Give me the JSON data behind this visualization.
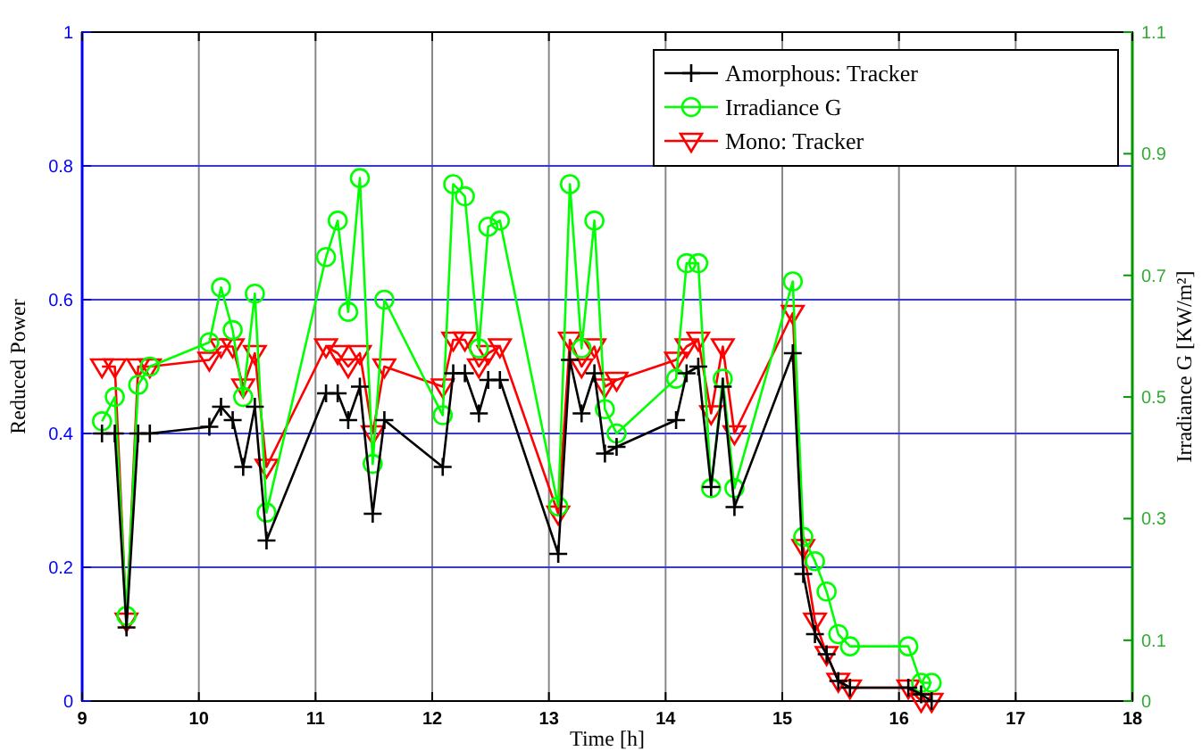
{
  "chart_data": {
    "type": "line",
    "xlabel": "Time [h]",
    "ylabel": "Reduced Power",
    "y2label": "Irradiance G [KW/m²]",
    "x": [
      9.17,
      9.28,
      9.38,
      9.48,
      9.58,
      10.09,
      10.19,
      10.29,
      10.38,
      10.48,
      10.58,
      11.09,
      11.19,
      11.28,
      11.38,
      11.49,
      11.59,
      12.09,
      12.18,
      12.28,
      12.4,
      12.48,
      12.58,
      13.08,
      13.18,
      13.28,
      13.39,
      13.48,
      13.58,
      14.09,
      14.18,
      14.28,
      14.39,
      14.49,
      14.59,
      15.09,
      15.18,
      15.28,
      15.38,
      15.48,
      15.58,
      16.08,
      16.19,
      16.28
    ],
    "series": [
      {
        "name": "Amorphous: Tracker",
        "color": "#000000",
        "marker": "cross",
        "values": [
          0.4,
          0.4,
          0.11,
          0.4,
          0.4,
          0.41,
          0.44,
          0.42,
          0.35,
          0.44,
          0.24,
          0.46,
          0.46,
          0.42,
          0.47,
          0.28,
          0.42,
          0.35,
          0.49,
          0.49,
          0.43,
          0.48,
          0.48,
          0.22,
          0.51,
          0.43,
          0.49,
          0.37,
          0.38,
          0.42,
          0.49,
          0.5,
          0.32,
          0.47,
          0.29,
          0.52,
          0.19,
          0.1,
          0.07,
          0.03,
          0.02,
          0.02,
          0.01,
          0
        ]
      },
      {
        "name": "Irradiance G",
        "color": "#00ff00",
        "marker": "circle",
        "axis": "y2",
        "values": [
          0.46,
          0.5,
          0.14,
          0.52,
          0.55,
          0.59,
          0.68,
          0.61,
          0.5,
          0.67,
          0.31,
          0.73,
          0.79,
          0.64,
          0.86,
          0.39,
          0.66,
          0.47,
          0.85,
          0.83,
          0.58,
          0.78,
          0.79,
          0.32,
          0.85,
          0.58,
          0.79,
          0.48,
          0.44,
          0.53,
          0.72,
          0.72,
          0.35,
          0.53,
          0.35,
          0.69,
          0.27,
          0.23,
          0.18,
          0.11,
          0.09,
          0.09,
          0.03,
          0.03
        ]
      },
      {
        "name": "Mono: Tracker",
        "color": "#ff0000",
        "marker": "triangle",
        "values": [
          0.5,
          0.5,
          0.12,
          0.5,
          0.5,
          0.51,
          0.53,
          0.53,
          0.47,
          0.52,
          0.35,
          0.53,
          0.52,
          0.5,
          0.52,
          0.4,
          0.5,
          0.47,
          0.54,
          0.54,
          0.5,
          0.52,
          0.53,
          0.28,
          0.54,
          0.5,
          0.53,
          0.47,
          0.48,
          0.51,
          0.53,
          0.54,
          0.43,
          0.53,
          0.4,
          0.58,
          0.23,
          0.12,
          0.07,
          0.03,
          0.02,
          0.02,
          0,
          0
        ]
      }
    ],
    "xlim": [
      9,
      18
    ],
    "xticks": [
      9,
      10,
      11,
      12,
      13,
      14,
      15,
      16,
      17,
      18
    ],
    "ylim": [
      0,
      1
    ],
    "yticks": [
      0,
      0.2,
      0.4,
      0.6,
      0.8,
      1
    ],
    "y2lim": [
      0,
      1.1
    ],
    "y2ticks": [
      0,
      0.1,
      0.3,
      0.5,
      0.7,
      0.9,
      1.1
    ],
    "grid": true,
    "legend": "top right",
    "line_style": "solid"
  }
}
